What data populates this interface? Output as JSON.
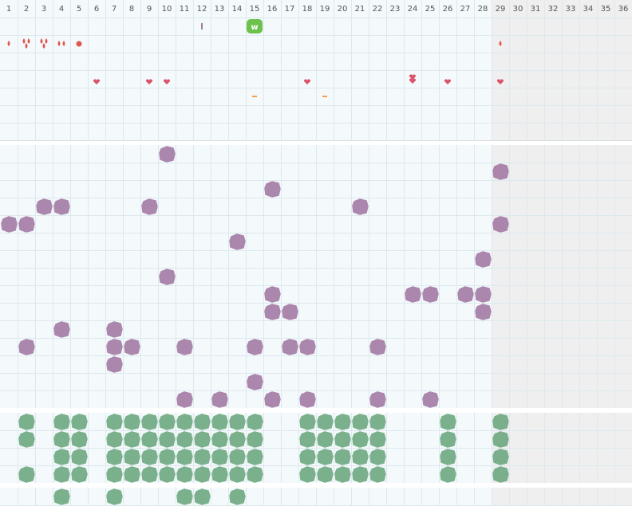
{
  "header": {
    "days": [
      "1",
      "2",
      "3",
      "4",
      "5",
      "6",
      "7",
      "8",
      "9",
      "10",
      "11",
      "12",
      "13",
      "14",
      "15",
      "16",
      "17",
      "18",
      "19",
      "20",
      "21",
      "22",
      "23",
      "24",
      "25",
      "26",
      "27",
      "28",
      "29",
      "30",
      "31",
      "32",
      "33",
      "34",
      "35",
      "36"
    ]
  },
  "badge": {
    "label": "w"
  }
}
